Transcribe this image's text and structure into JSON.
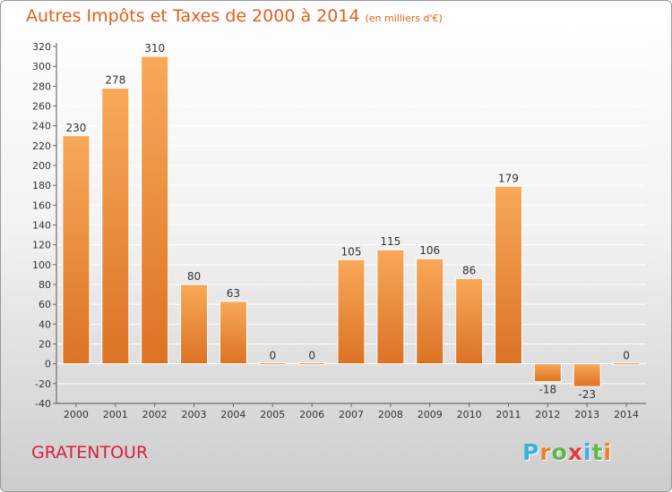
{
  "title": "Autres Impôts et Taxes de 2000 à 2014",
  "unit": "(en milliers d'€)",
  "place": "GRATENTOUR",
  "logo": {
    "text": "Proxiti",
    "letter_colors": [
      "#3ab0e0",
      "#e8822a",
      "#5db84a",
      "#e03c3c",
      "#3ab0e0",
      "#5db84a",
      "#e8822a"
    ]
  },
  "colors": {
    "bar_light": "#f8a959",
    "bar_dark": "#dc7224",
    "grid": "#ffffff"
  },
  "chart_data": {
    "type": "bar",
    "categories": [
      "2000",
      "2001",
      "2002",
      "2003",
      "2004",
      "2005",
      "2006",
      "2007",
      "2008",
      "2009",
      "2010",
      "2011",
      "2012",
      "2013",
      "2014"
    ],
    "values": [
      230,
      278,
      310,
      80,
      63,
      0,
      0,
      105,
      115,
      106,
      86,
      179,
      -18,
      -23,
      0
    ],
    "data_labels": [
      "230",
      "278",
      "310",
      "80",
      "63",
      "0",
      "0",
      "105",
      "115",
      "106",
      "86",
      "179",
      "-18",
      "-23",
      "0"
    ],
    "title": "Autres Impôts et Taxes de 2000 à 2014",
    "xlabel": "",
    "ylabel": "",
    "ylim": [
      -40,
      320
    ],
    "yticks": [
      -40,
      -20,
      0,
      20,
      40,
      60,
      80,
      100,
      120,
      140,
      160,
      180,
      200,
      220,
      240,
      260,
      280,
      300,
      320
    ],
    "grid": true
  }
}
